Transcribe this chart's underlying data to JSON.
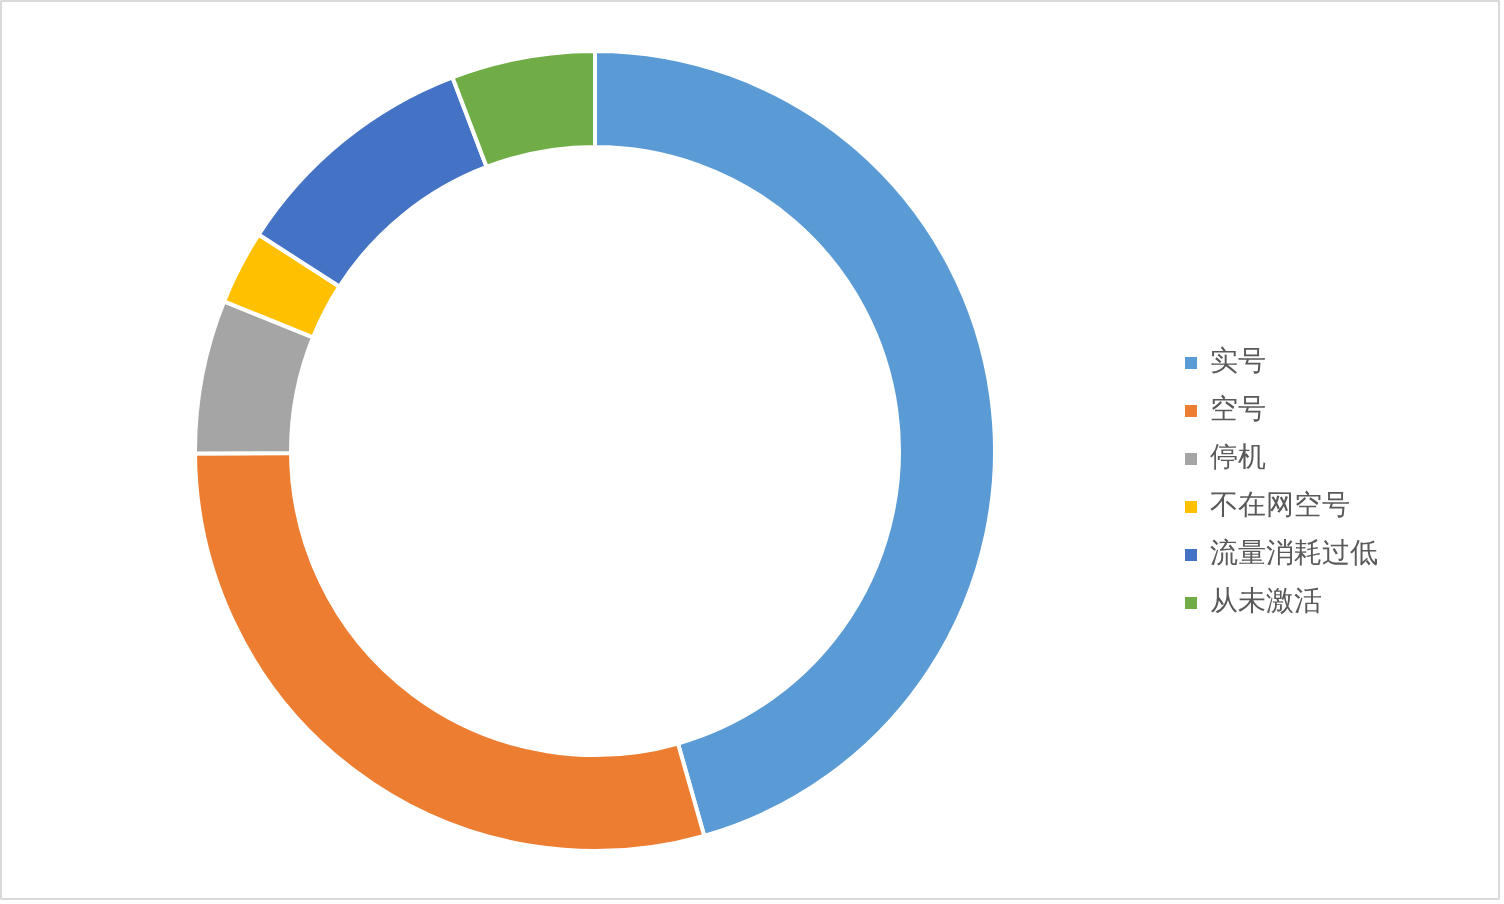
{
  "chart_data": {
    "type": "donut",
    "categories": [
      "实号",
      "空号",
      "停机",
      "不在网空号",
      "流量消耗过低",
      "从未激活"
    ],
    "values": [
      45.6,
      29.3,
      6.2,
      3.0,
      10.1,
      5.8
    ],
    "colors": [
      "#5b9bd5",
      "#ed7d31",
      "#a5a5a5",
      "#ffc000",
      "#4472c4",
      "#70ad47"
    ],
    "legend": "right"
  }
}
